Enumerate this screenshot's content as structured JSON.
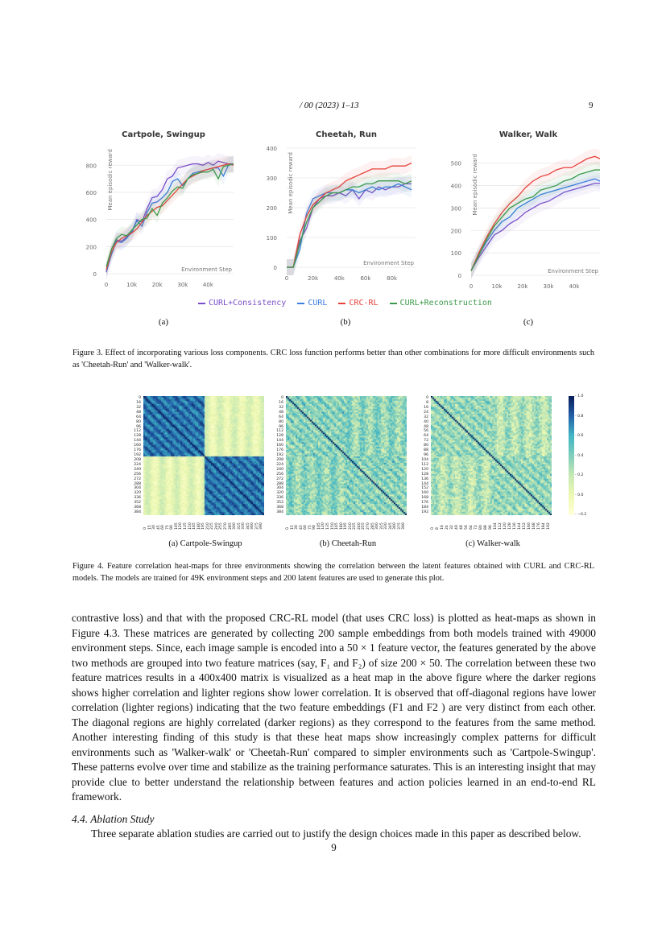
{
  "header": {
    "running_title": "/ 00 (2023) 1–13",
    "page_number": "9"
  },
  "figure3": {
    "legend": [
      {
        "label": "CURL+Consistency",
        "color": "#7b4fc9"
      },
      {
        "label": "CURL",
        "color": "#3b7de0"
      },
      {
        "label": "CRC-RL",
        "color": "#e8413c"
      },
      {
        "label": "CURL+Reconstruction",
        "color": "#3c9a4a"
      }
    ],
    "sublabels": [
      "(a)",
      "(b)",
      "(c)"
    ],
    "caption": "Figure 3.  Effect of incorporating various loss components.  CRC loss function performs better than other combinations for more difficult environments such as 'Cheetah-Run' and 'Walker-walk'."
  },
  "chart_data": [
    {
      "type": "line",
      "title": "Cartpole, Swingup",
      "xlabel": "Environment Step",
      "ylabel": "Mean episodic reward",
      "xlim": [
        0,
        50000
      ],
      "ylim": [
        0,
        950
      ],
      "xticks": [
        0,
        10000,
        20000,
        30000,
        40000
      ],
      "xtick_labels": [
        "0",
        "10k",
        "20k",
        "30k",
        "40k"
      ],
      "yticks": [
        0,
        200,
        400,
        600,
        800
      ],
      "ytick_labels": [
        "0",
        "200",
        "400",
        "600",
        "800"
      ],
      "grid": true,
      "x": [
        0,
        2000,
        4000,
        6000,
        8000,
        10000,
        12000,
        14000,
        16000,
        18000,
        20000,
        22000,
        24000,
        26000,
        28000,
        30000,
        32000,
        34000,
        36000,
        38000,
        40000,
        42000,
        44000,
        46000,
        48000,
        50000
      ],
      "series": [
        {
          "name": "CURL+Consistency",
          "values": [
            10,
            150,
            250,
            240,
            270,
            300,
            400,
            380,
            480,
            560,
            570,
            620,
            700,
            720,
            780,
            790,
            800,
            810,
            810,
            800,
            820,
            800,
            830,
            820,
            810,
            810
          ]
        },
        {
          "name": "CURL",
          "values": [
            20,
            140,
            240,
            230,
            260,
            310,
            390,
            350,
            450,
            520,
            530,
            560,
            600,
            680,
            700,
            650,
            700,
            740,
            750,
            760,
            770,
            780,
            780,
            720,
            800,
            810
          ]
        },
        {
          "name": "CRC-RL",
          "values": [
            30,
            160,
            230,
            260,
            280,
            300,
            330,
            380,
            430,
            460,
            490,
            500,
            540,
            580,
            620,
            660,
            700,
            720,
            740,
            760,
            770,
            780,
            790,
            800,
            810,
            800
          ]
        },
        {
          "name": "CURL+Reconstruction",
          "values": [
            50,
            180,
            260,
            290,
            280,
            320,
            360,
            400,
            410,
            480,
            430,
            520,
            560,
            610,
            640,
            630,
            700,
            730,
            740,
            750,
            750,
            770,
            700,
            790,
            800,
            810
          ]
        }
      ]
    },
    {
      "type": "line",
      "title": "Cheetah, Run",
      "xlabel": "Environment Step",
      "ylabel": "Mean episodic reward",
      "xlim": [
        0,
        98000
      ],
      "ylim": [
        0,
        400
      ],
      "xticks": [
        0,
        20000,
        40000,
        60000,
        80000
      ],
      "xtick_labels": [
        "0",
        "20k",
        "40k",
        "60k",
        "80k"
      ],
      "yticks": [
        0,
        100,
        200,
        300,
        400
      ],
      "ytick_labels": [
        "0",
        "100",
        "200",
        "300",
        "400"
      ],
      "grid": true,
      "x": [
        0,
        5000,
        10000,
        15000,
        20000,
        25000,
        30000,
        35000,
        40000,
        45000,
        50000,
        55000,
        60000,
        65000,
        70000,
        75000,
        80000,
        85000,
        90000,
        95000
      ],
      "series": [
        {
          "name": "CURL+Consistency",
          "values": [
            0,
            0,
            90,
            130,
            200,
            230,
            240,
            240,
            250,
            240,
            260,
            230,
            260,
            250,
            270,
            260,
            270,
            270,
            280,
            280
          ]
        },
        {
          "name": "CURL",
          "values": [
            0,
            0,
            60,
            180,
            230,
            240,
            250,
            250,
            250,
            260,
            260,
            250,
            260,
            270,
            260,
            270,
            270,
            280,
            270,
            260
          ]
        },
        {
          "name": "CRC-RL",
          "values": [
            0,
            0,
            110,
            170,
            210,
            230,
            250,
            260,
            270,
            290,
            300,
            310,
            320,
            330,
            330,
            330,
            340,
            340,
            340,
            350
          ]
        },
        {
          "name": "CURL+Reconstruction",
          "values": [
            0,
            0,
            80,
            150,
            200,
            220,
            240,
            250,
            250,
            260,
            270,
            270,
            280,
            280,
            290,
            290,
            290,
            290,
            280,
            290
          ]
        }
      ]
    },
    {
      "type": "line",
      "title": "Walker, Walk",
      "xlabel": "Environment Step",
      "ylabel": "Mean episodic reward",
      "xlim": [
        0,
        50000
      ],
      "ylim": [
        0,
        560
      ],
      "xticks": [
        0,
        10000,
        20000,
        30000,
        40000
      ],
      "xtick_labels": [
        "0",
        "10k",
        "20k",
        "30k",
        "40k"
      ],
      "yticks": [
        0,
        100,
        200,
        300,
        400,
        500
      ],
      "ytick_labels": [
        "0",
        "100",
        "200",
        "300",
        "400",
        "500"
      ],
      "grid": true,
      "x": [
        0,
        3000,
        6000,
        9000,
        12000,
        15000,
        18000,
        21000,
        24000,
        27000,
        30000,
        33000,
        36000,
        39000,
        42000,
        45000,
        48000,
        50000
      ],
      "series": [
        {
          "name": "CURL+Consistency",
          "values": [
            20,
            80,
            130,
            180,
            200,
            230,
            250,
            280,
            300,
            320,
            330,
            350,
            370,
            380,
            390,
            400,
            410,
            410
          ]
        },
        {
          "name": "CURL",
          "values": [
            20,
            90,
            150,
            200,
            240,
            260,
            300,
            320,
            340,
            360,
            370,
            380,
            390,
            400,
            410,
            420,
            430,
            420
          ]
        },
        {
          "name": "CRC-RL",
          "values": [
            20,
            100,
            170,
            230,
            280,
            320,
            350,
            390,
            420,
            440,
            450,
            470,
            480,
            480,
            500,
            520,
            530,
            520
          ]
        },
        {
          "name": "CURL+Reconstruction",
          "values": [
            20,
            90,
            160,
            220,
            260,
            300,
            320,
            340,
            350,
            380,
            390,
            400,
            420,
            430,
            450,
            460,
            470,
            470
          ]
        }
      ]
    }
  ],
  "figure4": {
    "heatmaps": [
      {
        "label": "(a) Cartpole-Swingup",
        "yticks": [
          "0",
          "16",
          "32",
          "48",
          "64",
          "80",
          "96",
          "112",
          "128",
          "144",
          "160",
          "176",
          "192",
          "208",
          "224",
          "240",
          "256",
          "272",
          "288",
          "304",
          "320",
          "336",
          "352",
          "368",
          "384"
        ],
        "xticks": [
          "0",
          "15",
          "30",
          "45",
          "60",
          "75",
          "90",
          "105",
          "120",
          "135",
          "150",
          "165",
          "180",
          "195",
          "210",
          "225",
          "240",
          "255",
          "270",
          "285",
          "300",
          "315",
          "330",
          "345",
          "360",
          "375",
          "390"
        ]
      },
      {
        "label": "(b) Cheetah-Run",
        "yticks": [
          "0",
          "16",
          "32",
          "48",
          "64",
          "80",
          "96",
          "112",
          "128",
          "144",
          "160",
          "176",
          "192",
          "208",
          "224",
          "240",
          "256",
          "272",
          "288",
          "304",
          "320",
          "336",
          "352",
          "368",
          "384"
        ],
        "xticks": [
          "0",
          "15",
          "30",
          "45",
          "60",
          "75",
          "90",
          "105",
          "120",
          "135",
          "150",
          "165",
          "180",
          "195",
          "210",
          "225",
          "240",
          "255",
          "270",
          "285",
          "300",
          "315",
          "330",
          "345",
          "360",
          "375",
          "390"
        ]
      },
      {
        "label": "(c) Walker-walk",
        "yticks": [
          "0",
          "8",
          "16",
          "24",
          "32",
          "40",
          "48",
          "56",
          "64",
          "72",
          "80",
          "88",
          "96",
          "104",
          "112",
          "120",
          "128",
          "136",
          "144",
          "152",
          "160",
          "168",
          "176",
          "184",
          "192"
        ],
        "xticks": [
          "0",
          "8",
          "16",
          "24",
          "32",
          "40",
          "48",
          "56",
          "64",
          "72",
          "80",
          "88",
          "96",
          "104",
          "112",
          "120",
          "128",
          "136",
          "144",
          "152",
          "160",
          "168",
          "176",
          "184",
          "192"
        ]
      }
    ],
    "colorbar": {
      "ticks": [
        "1.0",
        "0.8",
        "0.6",
        "0.4",
        "0.2",
        "0.0",
        "−0.2"
      ],
      "range": [
        -0.2,
        1.0
      ],
      "colormap": "YlGnBu"
    },
    "caption": "Figure 4.  Feature correlation heat-maps for three environments showing the correlation between the latent features obtained with CURL and CRC-RL models. The models are trained for 49K environment steps and 200 latent features are used to generate this plot."
  },
  "body": {
    "paragraph": "contrastive loss) and that with the proposed CRC-RL model (that uses CRC loss) is plotted as heat-maps as shown in Figure 4.3. These matrices are generated by collecting 200 sample embeddings from both models trained with 49000 environment steps.  Since, each image sample is encoded into a 50 × 1 feature vector, the features generated by the above two methods are grouped into two feature matrices (say, F₁ and F₂) of size 200 × 50. The correlation between these two feature matrices results in a 400x400 matrix is visualized as a heat map in the above figure where the darker regions shows higher correlation and lighter regions show lower correlation.  It is observed that off-diagonal regions have lower correlation (lighter regions) indicating that the two feature embeddings (F1 and F2 ) are very distinct from each other.  The diagonal regions are highly correlated (darker regions) as they correspond to the features from the same method.  Another interesting finding of this study is that these heat maps show increasingly complex patterns for difficult environments such as 'Walker-walk' or 'Cheetah-Run' compared to simpler environments such as 'Cartpole-Swingup'.  These patterns evolve over time and stabilize as the training performance saturates.  This is an interesting insight that may provide clue to better understand the relationship between features and action policies learned in an end-to-end RL framework.",
    "section_heading": "4.4.  Ablation Study",
    "section_text": "Three separate ablation studies are carried out to justify the design choices made in this paper as described below.",
    "footer_page": "9"
  }
}
